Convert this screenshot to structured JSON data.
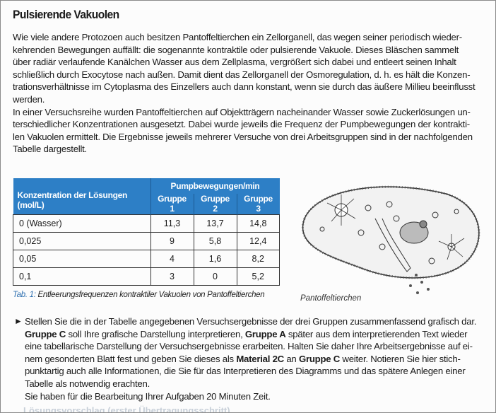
{
  "title": "Pulsierende Vakuolen",
  "intro": [
    "Wie viele andere Protozoen auch besitzen Pantoffeltierchen ein Zellorganell, das wegen seiner periodisch wieder-",
    "kehrenden Bewegungen auffällt: die sogenannte kontraktile oder pulsierende Vakuole. Dieses Bläschen sammelt",
    "über radiär verlaufende Kanälchen Wasser  aus dem Zellplasma, vergrößert sich dabei und entleert seinen Inhalt",
    "schließlich durch Exocytose nach außen. Damit dient das Zellorganell der Osmoregulation, d. h. es hält die Konzen-",
    "trationsverhältnisse im Cytoplasma des Einzellers auch dann konstant, wenn sie durch das äußere Millieu beeinflusst",
    "werden.",
    "In einer Versuchsreihe wurden Pantoffeltierchen auf Objektträgern nacheinander Wasser sowie Zuckerlösungen un-",
    "terschiedlicher Konzentrationen ausgesetzt. Dabei wurde jeweils die Frequenz der Pumpbewegungen der kontrakti-",
    "len Vakuolen ermittelt. Die Ergebnisse jeweils mehrerer Versuche von drei Arbeitsgruppen sind in der nachfolgenden",
    "Tabelle dargestellt."
  ],
  "table": {
    "group_header": "Pumpbewegungen/min",
    "col_header": "Konzentration der Lösungen (mol/L)",
    "groups": [
      "Gruppe 1",
      "Gruppe 2",
      "Gruppe 3"
    ],
    "rows": [
      {
        "c": "0 (Wasser)",
        "v": [
          "11,3",
          "13,7",
          "14,8"
        ]
      },
      {
        "c": "0,025",
        "v": [
          "9",
          "5,8",
          "12,4"
        ]
      },
      {
        "c": "0,05",
        "v": [
          "4",
          "1,6",
          "8,2"
        ]
      },
      {
        "c": "0,1",
        "v": [
          "3",
          "0",
          "5,2"
        ]
      }
    ],
    "header_color": "#2d7fc6"
  },
  "caption": {
    "label": "Tab. 1:",
    "text": " Entleerungsfrequenzen kontraktiler Vakuolen von Pantoffeltierchen"
  },
  "figure_label": "Pantoffeltierchen",
  "task": {
    "bullet": "►",
    "lines": [
      [
        {
          "t": "Stellen Sie die in der Tabelle angegebenen Versuchsergebnisse der drei Gruppen zusammenfassend grafisch dar."
        }
      ],
      [
        {
          "t": "Gruppe C",
          "b": true
        },
        {
          "t": " soll Ihre grafische Darstellung interpretieren, "
        },
        {
          "t": "Gruppe A",
          "b": true
        },
        {
          "t": " später aus dem interpretierenden Text wieder"
        }
      ],
      [
        {
          "t": "eine tabellarische Darstellung der Versuchsergebnisse erarbeiten. Halten Sie daher Ihre Arbeitsergebnisse auf ei-"
        }
      ],
      [
        {
          "t": "nem gesonderten Blatt fest und geben Sie dieses als "
        },
        {
          "t": "Material 2C",
          "b": true
        },
        {
          "t": " an "
        },
        {
          "t": "Gruppe C",
          "b": true
        },
        {
          "t": " weiter. Notieren Sie hier stich-"
        }
      ],
      [
        {
          "t": "punktartig auch alle Informationen, die Sie für das Interpretieren des Diagramms und das spätere Anlegen einer"
        }
      ],
      [
        {
          "t": "Tabelle als notwendig erachten."
        }
      ]
    ],
    "time_note": "Sie haben für die Bearbeitung Ihrer Aufgaben 20 Minuten Zeit."
  },
  "cut_off_heading": "Lösungsvorschlag (erster Übertragungsschritt)"
}
